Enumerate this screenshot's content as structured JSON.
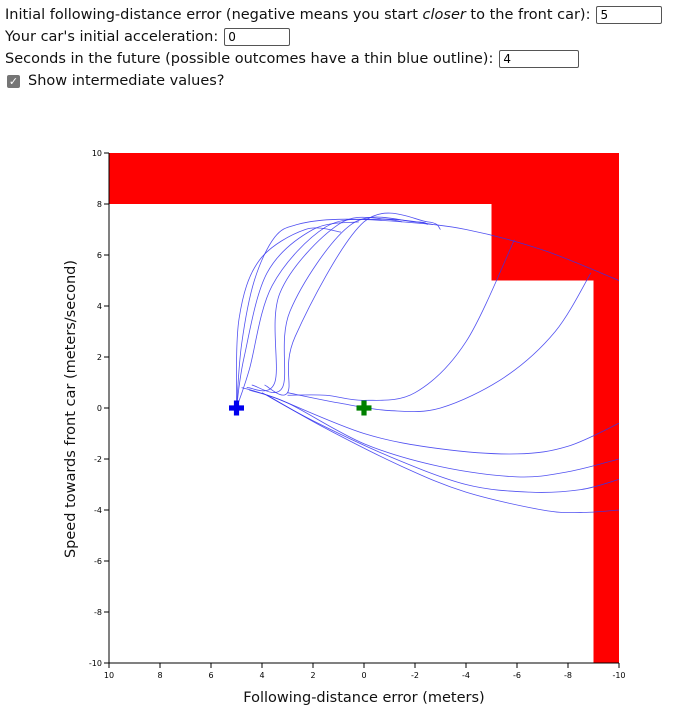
{
  "controls": {
    "error_label_pre": "Initial following-distance error (negative means you start ",
    "error_label_em": "closer",
    "error_label_post": " to the front car):",
    "error_value": "5",
    "accel_label": "Your car's initial acceleration:",
    "accel_value": "0",
    "seconds_label": "Seconds in the future (possible outcomes have a thin blue outline):",
    "seconds_value": "4",
    "show_label": "Show intermediate values?",
    "show_checked": true
  },
  "chart_data": {
    "type": "line",
    "xlabel": "Following-distance error (meters)",
    "ylabel": "Speed towards front car (meters/second)",
    "xlim": [
      10,
      -10
    ],
    "ylim": [
      -10,
      10
    ],
    "x_ticks": [
      "10",
      "8",
      "6",
      "4",
      "2",
      "0",
      "-2",
      "-4",
      "-6",
      "-8",
      "-10"
    ],
    "y_ticks": [
      "10",
      "8",
      "6",
      "4",
      "2",
      "0",
      "-2",
      "-4",
      "-6",
      "-8",
      "-10"
    ],
    "forbidden_regions": [
      {
        "x1": 10,
        "x2": -10,
        "y1": 8,
        "y2": 10
      },
      {
        "x1": -5,
        "x2": -10,
        "y1": 5,
        "y2": 10
      },
      {
        "x1": -9,
        "x2": -10,
        "y1": -10,
        "y2": 10
      }
    ],
    "start_marker": {
      "x": 5,
      "y": 0,
      "color": "#0000ee"
    },
    "target_marker": {
      "x": 0,
      "y": 0,
      "color": "#008000"
    },
    "outcome_curves": [
      [
        [
          5,
          0
        ],
        [
          4.8,
          2.5
        ],
        [
          4.3,
          5.0
        ],
        [
          3.5,
          6.7
        ],
        [
          2.6,
          7.2
        ],
        [
          1.0,
          7.4
        ],
        [
          -1.5,
          7.3
        ],
        [
          -4,
          7.0
        ],
        [
          -7,
          6.2
        ],
        [
          -10,
          5.0
        ]
      ],
      [
        [
          5,
          0
        ],
        [
          4.9,
          3.5
        ],
        [
          4.1,
          5.8
        ],
        [
          2.3,
          7.0
        ],
        [
          0.9,
          6.9
        ]
      ],
      [
        [
          5,
          0
        ],
        [
          4.7,
          2.0
        ],
        [
          3.8,
          5.3
        ],
        [
          2.0,
          7.0
        ],
        [
          0.2,
          7.3
        ]
      ],
      [
        [
          5,
          0
        ],
        [
          4.5,
          1.5
        ],
        [
          3.6,
          4.8
        ],
        [
          1.5,
          7.1
        ],
        [
          -0.6,
          7.4
        ],
        [
          -1.5,
          7.3
        ]
      ],
      [
        [
          4.6,
          0.8
        ],
        [
          3.5,
          1.0
        ],
        [
          3.3,
          4.5
        ],
        [
          1.0,
          7.2
        ],
        [
          -1.0,
          7.4
        ],
        [
          -2.7,
          7.2
        ]
      ],
      [
        [
          4.4,
          0.9
        ],
        [
          3.2,
          0.8
        ],
        [
          2.9,
          3.8
        ],
        [
          0.5,
          7.2
        ],
        [
          -2.0,
          7.3
        ],
        [
          -2.5,
          7.2
        ]
      ],
      [
        [
          3.9,
          0.9
        ],
        [
          3.0,
          0.6
        ],
        [
          2.7,
          2.8
        ],
        [
          0,
          7.3
        ],
        [
          -2.5,
          7.3
        ],
        [
          -3.0,
          7.0
        ]
      ],
      [
        [
          3.0,
          0.5
        ],
        [
          1.5,
          0.5
        ],
        [
          0,
          0.3
        ],
        [
          -2,
          0.6
        ],
        [
          -4,
          2.6
        ],
        [
          -5.9,
          6.6
        ]
      ],
      [
        [
          3.0,
          0.6
        ],
        [
          1.0,
          0.2
        ],
        [
          -1,
          -0.1
        ],
        [
          -3,
          0
        ],
        [
          -5.5,
          1.2
        ],
        [
          -7.5,
          3.0
        ],
        [
          -8.9,
          5.3
        ]
      ],
      [
        [
          4.8,
          0.8
        ],
        [
          3.5,
          0.4
        ],
        [
          0,
          -1.0
        ],
        [
          -3,
          -1.6
        ],
        [
          -6,
          -1.8
        ],
        [
          -8,
          -1.5
        ],
        [
          -10,
          -0.6
        ]
      ],
      [
        [
          4.5,
          0.7
        ],
        [
          3.0,
          0.2
        ],
        [
          0,
          -1.4
        ],
        [
          -3,
          -2.3
        ],
        [
          -6,
          -2.7
        ],
        [
          -8,
          -2.5
        ],
        [
          -10,
          -2.0
        ]
      ],
      [
        [
          4.0,
          0.6
        ],
        [
          2.0,
          -0.5
        ],
        [
          -1,
          -1.9
        ],
        [
          -4,
          -3.0
        ],
        [
          -6.5,
          -3.3
        ],
        [
          -8.5,
          -3.2
        ],
        [
          -10,
          -2.8
        ]
      ],
      [
        [
          3.8,
          0.5
        ],
        [
          1.5,
          -0.8
        ],
        [
          -1.5,
          -2.3
        ],
        [
          -4,
          -3.3
        ],
        [
          -7,
          -4.0
        ],
        [
          -8.5,
          -4.1
        ],
        [
          -10,
          -4.0
        ]
      ]
    ]
  }
}
